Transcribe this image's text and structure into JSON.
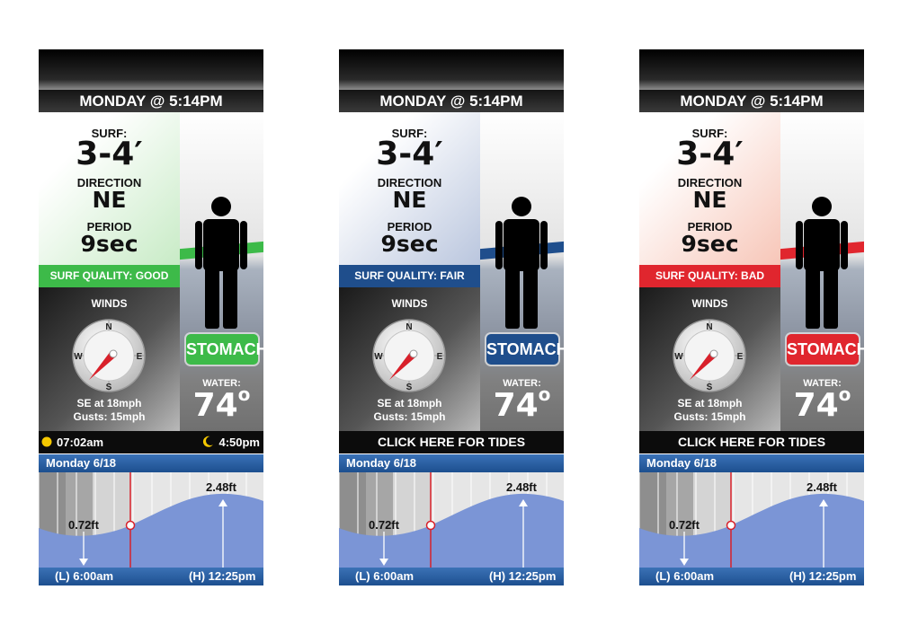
{
  "panels": [
    {
      "id": "good",
      "day_time": "MONDAY @ 5:14PM",
      "surf_label": "SURF:",
      "surf_height": "3-4′",
      "direction_label": "DIRECTION",
      "direction": "NE",
      "period_label": "PERIOD",
      "period": "9sec",
      "quality": "SURF QUALITY: GOOD",
      "quality_color": "#3dba49",
      "surf_gradient_color": "#c8ebc6",
      "board_label": "STOMACH",
      "board_color": "#3dba49",
      "winds_label": "WINDS",
      "compass": {
        "n": "N",
        "e": "E",
        "s": "S",
        "w": "W"
      },
      "wind_speed": "SE at 18mph",
      "wind_gusts": "Gusts: 15mph",
      "water_label": "WATER:",
      "water_temp": "74",
      "water_degree": "o",
      "footer_type": "sun",
      "sunrise": "07:02am",
      "sunset": "4:50pm",
      "tide_date": "Monday 6/18",
      "low_height": "0.72ft",
      "high_height": "2.48ft",
      "low_time": "(L) 6:00am",
      "high_time": "(H) 12:25pm"
    },
    {
      "id": "fair",
      "day_time": "MONDAY @ 5:14PM",
      "surf_label": "SURF:",
      "surf_height": "3-4′",
      "direction_label": "DIRECTION",
      "direction": "NE",
      "period_label": "PERIOD",
      "period": "9sec",
      "quality": "SURF QUALITY: FAIR",
      "quality_color": "#1f4e8c",
      "surf_gradient_color": "#bac6de",
      "board_label": "STOMACH",
      "board_color": "#1f4e8c",
      "winds_label": "WINDS",
      "compass": {
        "n": "N",
        "e": "E",
        "s": "S",
        "w": "W"
      },
      "wind_speed": "SE at 18mph",
      "wind_gusts": "Gusts: 15mph",
      "water_label": "WATER:",
      "water_temp": "74",
      "water_degree": "o",
      "footer_type": "tides",
      "tides_link": "CLICK HERE FOR TIDES",
      "tide_date": "Monday 6/18",
      "low_height": "0.72ft",
      "high_height": "2.48ft",
      "low_time": "(L) 6:00am",
      "high_time": "(H) 12:25pm"
    },
    {
      "id": "bad",
      "day_time": "MONDAY @ 5:14PM",
      "surf_label": "SURF:",
      "surf_height": "3-4′",
      "direction_label": "DIRECTION",
      "direction": "NE",
      "period_label": "PERIOD",
      "period": "9sec",
      "quality": "SURF QUALITY: BAD",
      "quality_color": "#e0262e",
      "surf_gradient_color": "#f7c6b8",
      "board_label": "STOMACH",
      "board_color": "#e0262e",
      "winds_label": "WINDS",
      "compass": {
        "n": "N",
        "e": "E",
        "s": "S",
        "w": "W"
      },
      "wind_speed": "SE at 18mph",
      "wind_gusts": "Gusts: 15mph",
      "water_label": "WATER:",
      "water_temp": "74",
      "water_degree": "o",
      "footer_type": "tides",
      "tides_link": "CLICK HERE FOR TIDES",
      "tide_date": "Monday 6/18",
      "low_height": "0.72ft",
      "high_height": "2.48ft",
      "low_time": "(L) 6:00am",
      "high_time": "(H) 12:25pm"
    }
  ],
  "colors": {
    "tide_water": "#7b95d6",
    "current_time_line": "#d8202a",
    "wind_arrow": "#d8202a"
  }
}
